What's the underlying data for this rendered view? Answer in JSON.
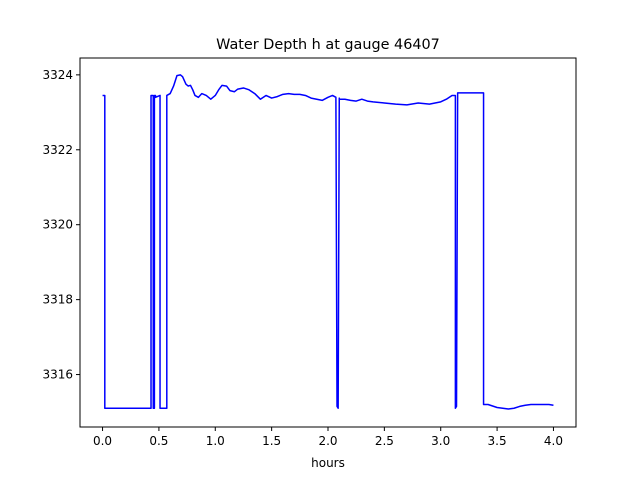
{
  "chart_data": {
    "type": "line",
    "title": "Water Depth h at gauge 46407",
    "xlabel": "hours",
    "ylabel": "",
    "xlim": [
      -0.2,
      4.2
    ],
    "ylim": [
      3314.6,
      3324.45
    ],
    "xticks": [
      0.0,
      0.5,
      1.0,
      1.5,
      2.0,
      2.5,
      3.0,
      3.5,
      4.0
    ],
    "xtick_labels": [
      "0.0",
      "0.5",
      "1.0",
      "1.5",
      "2.0",
      "2.5",
      "3.0",
      "3.5",
      "4.0"
    ],
    "yticks": [
      3316,
      3318,
      3320,
      3322,
      3324
    ],
    "ytick_labels": [
      "3316",
      "3318",
      "3320",
      "3322",
      "3324"
    ],
    "grid": false,
    "line_color": "#0000ff",
    "series": [
      {
        "x": [
          0.0,
          0.02,
          0.02,
          0.1,
          0.2,
          0.3,
          0.43,
          0.43,
          0.45,
          0.45,
          0.46,
          0.46,
          0.47,
          0.47,
          0.51,
          0.51,
          0.53,
          0.53,
          0.57,
          0.57,
          0.6,
          0.63,
          0.66,
          0.69,
          0.71,
          0.74,
          0.76,
          0.78,
          0.8,
          0.82,
          0.85,
          0.88,
          0.92,
          0.96,
          1.0,
          1.03,
          1.06,
          1.1,
          1.13,
          1.17,
          1.2,
          1.25,
          1.3,
          1.35,
          1.4,
          1.45,
          1.5,
          1.55,
          1.6,
          1.65,
          1.7,
          1.75,
          1.8,
          1.85,
          1.9,
          1.95,
          2.0,
          2.04,
          2.07,
          2.08,
          2.09,
          2.1,
          2.1,
          2.15,
          2.2,
          2.25,
          2.3,
          2.35,
          2.4,
          2.5,
          2.6,
          2.7,
          2.8,
          2.9,
          3.0,
          3.05,
          3.1,
          3.13,
          3.13,
          3.14,
          3.15,
          3.15,
          3.2,
          3.3,
          3.38,
          3.38,
          3.42,
          3.5,
          3.6,
          3.65,
          3.7,
          3.75,
          3.8,
          3.9,
          3.96,
          4.0
        ],
        "y": [
          3323.45,
          3323.45,
          3315.1,
          3315.1,
          3315.1,
          3315.1,
          3315.1,
          3323.45,
          3323.45,
          3315.1,
          3315.1,
          3323.45,
          3323.45,
          3323.4,
          3323.45,
          3315.1,
          3315.1,
          3315.1,
          3315.1,
          3323.45,
          3323.5,
          3323.7,
          3323.98,
          3324.0,
          3323.95,
          3323.75,
          3323.7,
          3323.72,
          3323.6,
          3323.45,
          3323.4,
          3323.5,
          3323.45,
          3323.35,
          3323.45,
          3323.6,
          3323.72,
          3323.7,
          3323.58,
          3323.55,
          3323.62,
          3323.65,
          3323.6,
          3323.5,
          3323.35,
          3323.45,
          3323.38,
          3323.42,
          3323.48,
          3323.5,
          3323.48,
          3323.48,
          3323.45,
          3323.38,
          3323.35,
          3323.32,
          3323.4,
          3323.45,
          3323.4,
          3315.15,
          3315.1,
          3323.38,
          3323.35,
          3323.35,
          3323.32,
          3323.3,
          3323.35,
          3323.3,
          3323.28,
          3323.25,
          3323.22,
          3323.2,
          3323.25,
          3323.22,
          3323.28,
          3323.35,
          3323.45,
          3323.45,
          3315.1,
          3315.15,
          3323.5,
          3323.52,
          3323.52,
          3323.52,
          3323.52,
          3315.2,
          3315.2,
          3315.12,
          3315.08,
          3315.1,
          3315.15,
          3315.18,
          3315.2,
          3315.2,
          3315.2,
          3315.18
        ]
      }
    ]
  }
}
